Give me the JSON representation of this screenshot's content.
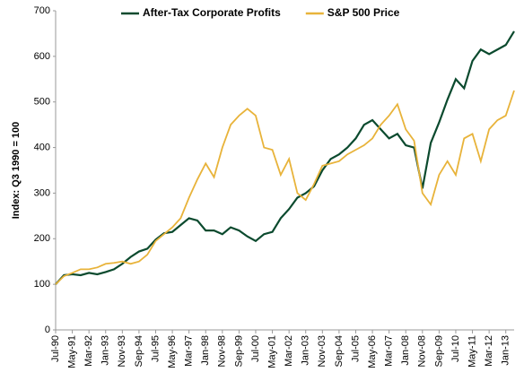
{
  "chart_data": {
    "type": "line",
    "y_label": "Index: Q3 1990 = 100",
    "categories": [
      "Jul-90",
      null,
      "May-91",
      null,
      "Mar-92",
      null,
      "Jan-93",
      null,
      "Nov-93",
      null,
      "Sep-94",
      null,
      "Jul-95",
      null,
      "May-96",
      null,
      "Mar-97",
      null,
      "Jan-98",
      null,
      "Nov-98",
      null,
      "Sep-99",
      null,
      "Jul-00",
      null,
      "May-01",
      null,
      "Mar-02",
      null,
      "Jan-03",
      null,
      "Nov-03",
      null,
      "Sep-04",
      null,
      "Jul-05",
      null,
      "May-06",
      null,
      "Mar-07",
      null,
      "Jan-08",
      null,
      "Nov-08",
      null,
      "Sep-09",
      null,
      "Jul-10",
      null,
      "May-11",
      null,
      "Mar-12",
      null,
      "Jan-13",
      null
    ],
    "series": [
      {
        "name": "After-Tax Corporate Profits",
        "color": "#0b4a2e",
        "values": [
          100,
          120,
          122,
          120,
          125,
          122,
          127,
          133,
          145,
          160,
          172,
          178,
          198,
          212,
          215,
          230,
          245,
          240,
          218,
          218,
          210,
          225,
          218,
          205,
          195,
          210,
          215,
          245,
          265,
          290,
          300,
          315,
          350,
          375,
          385,
          400,
          420,
          450,
          460,
          440,
          420,
          430,
          405,
          400,
          310,
          410,
          455,
          505,
          550,
          530,
          590,
          615,
          605,
          615,
          625,
          655
        ]
      },
      {
        "name": "S&P 500 Price",
        "color": "#e8b33a",
        "values": [
          100,
          118,
          125,
          133,
          133,
          137,
          145,
          147,
          150,
          145,
          150,
          165,
          195,
          210,
          225,
          245,
          290,
          330,
          365,
          335,
          400,
          450,
          470,
          485,
          470,
          400,
          395,
          340,
          375,
          300,
          285,
          320,
          360,
          365,
          370,
          385,
          395,
          405,
          420,
          450,
          470,
          495,
          440,
          415,
          300,
          275,
          340,
          370,
          340,
          420,
          430,
          370,
          440,
          460,
          470,
          525
        ]
      }
    ],
    "ylim": [
      0,
      700
    ],
    "yticks": [
      0,
      100,
      200,
      300,
      400,
      500,
      600,
      700
    ],
    "legend": "top"
  }
}
